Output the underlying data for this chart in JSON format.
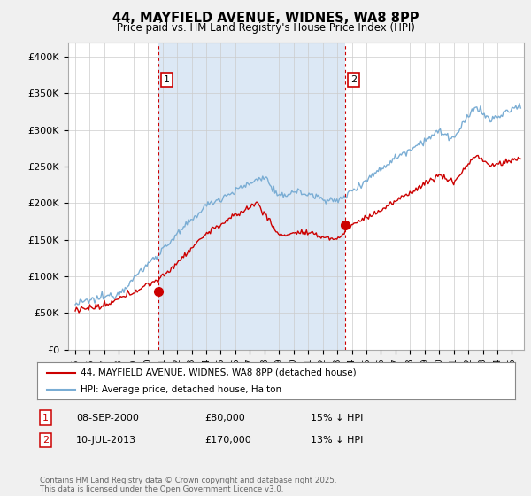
{
  "title": "44, MAYFIELD AVENUE, WIDNES, WA8 8PP",
  "subtitle": "Price paid vs. HM Land Registry's House Price Index (HPI)",
  "ylabel_ticks": [
    "£0",
    "£50K",
    "£100K",
    "£150K",
    "£200K",
    "£250K",
    "£300K",
    "£350K",
    "£400K"
  ],
  "ytick_values": [
    0,
    50000,
    100000,
    150000,
    200000,
    250000,
    300000,
    350000,
    400000
  ],
  "ylim": [
    0,
    420000
  ],
  "xlim_start": 1994.5,
  "xlim_end": 2025.8,
  "hpi_color": "#7aadd4",
  "price_color": "#cc0000",
  "marker1_date": 2000.69,
  "marker1_value": 80000,
  "marker2_date": 2013.52,
  "marker2_value": 170000,
  "marker1_label": "1",
  "marker2_label": "2",
  "vline_color": "#cc0000",
  "shade_color": "#dce8f5",
  "legend_line1": "44, MAYFIELD AVENUE, WIDNES, WA8 8PP (detached house)",
  "legend_line2": "HPI: Average price, detached house, Halton",
  "table_row1": [
    "1",
    "08-SEP-2000",
    "£80,000",
    "15% ↓ HPI"
  ],
  "table_row2": [
    "2",
    "10-JUL-2013",
    "£170,000",
    "13% ↓ HPI"
  ],
  "footer": "Contains HM Land Registry data © Crown copyright and database right 2025.\nThis data is licensed under the Open Government Licence v3.0.",
  "background_color": "#f0f0f0",
  "plot_bg_color": "#ffffff"
}
